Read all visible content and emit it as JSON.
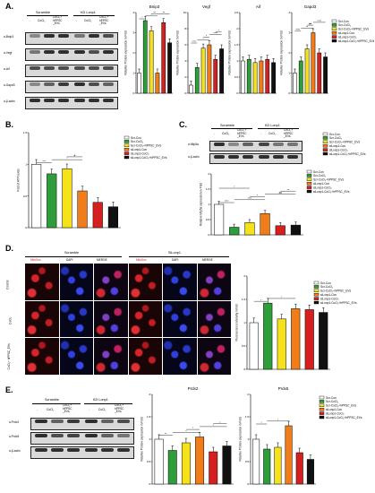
{
  "panels": {
    "A": {
      "letter": "A.",
      "blot": {
        "group1": "Scramble",
        "group2": "KD Lonp1",
        "lanes": [
          "-",
          "CoCl₂",
          "CoCl₂+ hPPSC _EVs",
          "-",
          "CoCl₂",
          "CoCl₂+ hPPSC _EVs"
        ],
        "rows": [
          "α-Bnip3",
          "α-Vegf",
          "α-Aif",
          "α-Gapd3",
          "α-β-actin"
        ]
      },
      "ylabel": "Relative Protein expression in Fold"
    },
    "B": {
      "letter": "B."
    },
    "C": {
      "letter": "C.",
      "blot": {
        "group1": "Scramble",
        "group2": "KD Lonp1",
        "lanes": [
          "-",
          "CoCl₂",
          "CoCl₂+ hPPSC _EVs",
          "-",
          "CoCl₂",
          "CoCl₂+ hPPSC _EVs"
        ],
        "rows": [
          "α-Mtp5a",
          "α-β-actin"
        ]
      }
    },
    "D": {
      "letter": "D.",
      "group1": "Scramble",
      "group2": "SiLonp1",
      "cols": [
        "MitoSox",
        "DAPI",
        "MERGE",
        "MitoSox",
        "DAPI",
        "MERGE"
      ],
      "rows": [
        "Control",
        "CoCl₂",
        "CoCl₂+ hPPSC_EVs"
      ]
    },
    "E": {
      "letter": "E.",
      "blot": {
        "group1": "Scramble",
        "group2": "KD Lonp1",
        "lanes": [
          "-",
          "CoCl₂",
          "CoCl₂+ hPPSC _EVs",
          "-",
          "CoCl₂",
          "CoCl₂+ hPPSC _EVs"
        ],
        "rows": [
          "α-Prdx2",
          "α-Prdx5",
          "α-β-actin"
        ]
      },
      "ylabel": "Relative Protein expression in Fold"
    }
  },
  "legend": [
    "Scr-Con",
    "Scr-CoCl₂",
    "Scr-CoCl₂+hPPSC_EVs",
    "siLonp1-Con",
    "siLonp1-CoCl₂",
    "siLonp1-CoCl₂+hPPSC_EVs"
  ],
  "colors": [
    "#ffffff",
    "#2e9e3a",
    "#f6e21a",
    "#f07d1a",
    "#d6201f",
    "#111111"
  ],
  "chart_data": [
    {
      "id": "A-Bnip3",
      "type": "bar",
      "title": "Bnip3",
      "ylabel": "Relative Protein expression in Fold",
      "ylim": [
        0,
        4
      ],
      "ticks": [
        0,
        1,
        2,
        3,
        4
      ],
      "values": [
        1.0,
        3.6,
        3.1,
        1.0,
        3.5,
        2.5
      ],
      "sig": [
        "*",
        "*",
        "**",
        "**"
      ]
    },
    {
      "id": "A-Vegf",
      "type": "bar",
      "title": "Vegf",
      "ylabel": "Relative Protein expression in Fold",
      "ylim": [
        0,
        10
      ],
      "ticks": [
        0,
        2,
        4,
        6,
        8,
        10
      ],
      "values": [
        1.0,
        3.2,
        5.6,
        6.0,
        4.2,
        5.5
      ],
      "sig": [
        "****",
        "*",
        "*",
        "****",
        "*"
      ]
    },
    {
      "id": "A-Aif",
      "type": "bar",
      "title": "Aif",
      "ylabel": "Relative Protein expression in Fold",
      "ylim": [
        0,
        2.5
      ],
      "ticks": [
        0,
        0.5,
        1.0,
        1.5,
        2.0,
        2.5
      ],
      "values": [
        1.0,
        1.05,
        0.95,
        1.0,
        1.05,
        0.95
      ],
      "sig": []
    },
    {
      "id": "A-Gapd3",
      "type": "bar",
      "title": "Gapd3",
      "ylabel": "Relative Protein expression in Fold",
      "ylim": [
        0,
        4
      ],
      "ticks": [
        0,
        1,
        2,
        3,
        4
      ],
      "values": [
        1.0,
        1.6,
        2.2,
        3.0,
        2.0,
        1.8
      ],
      "sig": [
        "****",
        "**",
        "##",
        "****"
      ]
    },
    {
      "id": "B",
      "type": "bar",
      "title": "",
      "ylabel": "Fold of ATP levels",
      "ylim": [
        0,
        1.5
      ],
      "ticks": [
        0.0,
        0.5,
        1.0,
        1.5
      ],
      "values": [
        1.0,
        0.85,
        0.93,
        0.58,
        0.4,
        0.33
      ],
      "sig": [
        "***",
        "*",
        "#"
      ]
    },
    {
      "id": "C",
      "type": "bar",
      "title": "",
      "ylabel": "Relative Mtp5a expression in Fold",
      "ylim": [
        0,
        2.0
      ],
      "ticks": [
        0.0,
        0.5,
        1.0,
        1.5,
        2.0
      ],
      "values": [
        1.0,
        0.25,
        0.4,
        0.7,
        0.3,
        0.32
      ],
      "sig": [
        "****",
        "****",
        "*",
        "##",
        "**",
        "*"
      ]
    },
    {
      "id": "D",
      "type": "bar",
      "title": "",
      "ylabel": "Fluorescence intensity in fold",
      "ylim": [
        0,
        2.0
      ],
      "ticks": [
        0.0,
        0.5,
        1.0,
        1.5,
        2.0
      ],
      "values": [
        1.0,
        1.42,
        1.08,
        1.3,
        1.28,
        1.22
      ],
      "sig": [
        "*",
        "*"
      ]
    },
    {
      "id": "E-Prdx2",
      "type": "bar",
      "title": "Prdx2",
      "ylabel": "Relative Protein expression in Fold",
      "ylim": [
        0,
        2.0
      ],
      "ticks": [
        0.0,
        0.5,
        1.0,
        1.5,
        2.0
      ],
      "values": [
        1.0,
        0.75,
        0.92,
        1.05,
        0.72,
        0.85
      ],
      "sig": [
        "**",
        "*",
        "*",
        "*",
        "*"
      ]
    },
    {
      "id": "E-Prdx5",
      "type": "bar",
      "title": "Prdx5",
      "ylabel": "Relative Protein expression in Fold",
      "ylim": [
        0,
        2.0
      ],
      "ticks": [
        0.0,
        0.5,
        1.0,
        1.5,
        2.0
      ],
      "values": [
        1.0,
        0.78,
        0.82,
        1.3,
        0.7,
        0.55
      ],
      "sig": [
        "*",
        "*"
      ]
    }
  ]
}
